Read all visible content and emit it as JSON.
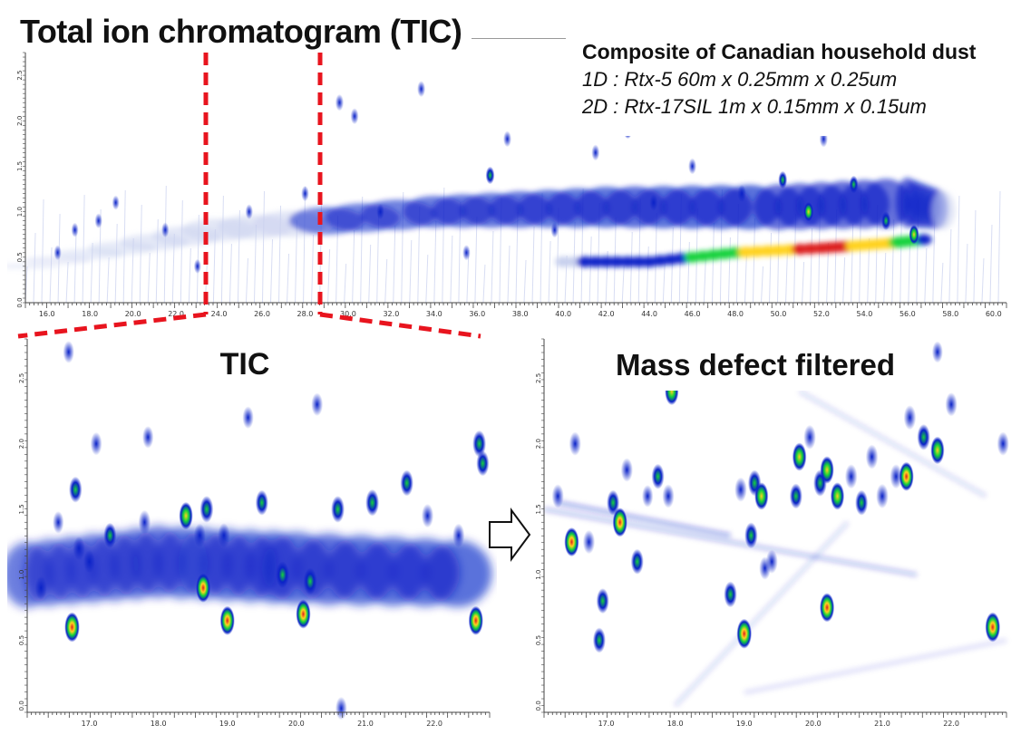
{
  "page": {
    "title": "Total ion chromatogram (TIC)",
    "info_heading": "Composite of Canadian household dust",
    "info_line1": "1D : Rtx-5 60m x 0.25mm x 0.25um",
    "info_line2": "2D : Rtx-17SIL 1m x 0.15mm x 0.15um",
    "tic_label": "TIC",
    "mdf_label": "Mass defect filtered"
  },
  "colors": {
    "low": "#c8d0ee",
    "mid": "#0a22c8",
    "high": "#14d23c",
    "peak": "#ffd21e",
    "max": "#dc1e1e",
    "zoom_lines": "#e8141e"
  },
  "chart_data": [
    {
      "type": "heatmap",
      "name": "overview-tic",
      "x_ticks": [
        "16.0",
        "18.0",
        "20.0",
        "22.0",
        "24.0",
        "26.0",
        "28.0",
        "30.0",
        "32.0",
        "34.0",
        "36.0",
        "38.0",
        "40.0",
        "42.0",
        "44.0",
        "46.0",
        "48.0",
        "50.0",
        "52.0",
        "54.0",
        "56.0",
        "58.0",
        "60.0"
      ],
      "xlim": [
        15,
        60.6
      ],
      "y_ticks": [
        "0.0",
        "0.5",
        "1.0",
        "1.5",
        "2.0",
        "2.5"
      ],
      "ylim": [
        0,
        2.75
      ],
      "zoom_region": [
        16.8,
        22.5
      ],
      "band": [
        {
          "x": 15,
          "y": 0.4,
          "w": 0.05,
          "i": 0.1
        },
        {
          "x": 24,
          "y": 0.8,
          "w": 0.25,
          "i": 0.3
        },
        {
          "x": 34,
          "y": 1.0,
          "w": 0.35,
          "i": 0.45
        },
        {
          "x": 42,
          "y": 1.05,
          "w": 0.45,
          "i": 0.55
        },
        {
          "x": 50,
          "y": 1.05,
          "w": 0.5,
          "i": 0.6
        },
        {
          "x": 56,
          "y": 1.1,
          "w": 0.55,
          "i": 0.6
        },
        {
          "x": 58,
          "y": 1.0,
          "w": 0.4,
          "i": 0.3
        }
      ],
      "ridge": [
        {
          "x": 40,
          "y": 0.45,
          "i": 0.3
        },
        {
          "x": 44,
          "y": 0.45,
          "i": 0.55
        },
        {
          "x": 48,
          "y": 0.55,
          "i": 0.8
        },
        {
          "x": 52,
          "y": 0.6,
          "i": 0.95
        },
        {
          "x": 55,
          "y": 0.65,
          "i": 0.85
        },
        {
          "x": 57,
          "y": 0.7,
          "i": 0.6
        }
      ],
      "peaks": [
        {
          "x": 16.5,
          "y": 0.55,
          "i": 0.45
        },
        {
          "x": 17.3,
          "y": 0.8,
          "i": 0.4
        },
        {
          "x": 18.4,
          "y": 0.9,
          "i": 0.45
        },
        {
          "x": 19.2,
          "y": 1.1,
          "i": 0.4
        },
        {
          "x": 21.5,
          "y": 0.8,
          "i": 0.45
        },
        {
          "x": 23.0,
          "y": 0.4,
          "i": 0.4
        },
        {
          "x": 25.4,
          "y": 1.0,
          "i": 0.45
        },
        {
          "x": 28.0,
          "y": 1.2,
          "i": 0.5
        },
        {
          "x": 29.6,
          "y": 2.2,
          "i": 0.6
        },
        {
          "x": 30.3,
          "y": 2.05,
          "i": 0.55
        },
        {
          "x": 31.5,
          "y": 1.0,
          "i": 0.5
        },
        {
          "x": 33.4,
          "y": 2.35,
          "i": 0.55
        },
        {
          "x": 35.5,
          "y": 0.55,
          "i": 0.5
        },
        {
          "x": 36.6,
          "y": 1.4,
          "i": 0.7
        },
        {
          "x": 37.4,
          "y": 1.8,
          "i": 0.55
        },
        {
          "x": 39.6,
          "y": 0.8,
          "i": 0.5
        },
        {
          "x": 41.5,
          "y": 1.65,
          "i": 0.55
        },
        {
          "x": 43.0,
          "y": 1.9,
          "i": 0.7
        },
        {
          "x": 44.2,
          "y": 1.1,
          "i": 0.6
        },
        {
          "x": 46.0,
          "y": 1.5,
          "i": 0.55
        },
        {
          "x": 48.3,
          "y": 1.2,
          "i": 0.65
        },
        {
          "x": 50.2,
          "y": 1.35,
          "i": 0.7
        },
        {
          "x": 51.4,
          "y": 1.0,
          "i": 0.85
        },
        {
          "x": 52.1,
          "y": 1.8,
          "i": 0.6
        },
        {
          "x": 53.5,
          "y": 1.3,
          "i": 0.7
        },
        {
          "x": 55.0,
          "y": 0.9,
          "i": 0.8
        },
        {
          "x": 56.3,
          "y": 0.75,
          "i": 0.85
        }
      ]
    },
    {
      "type": "heatmap",
      "name": "zoom-tic",
      "x_ticks": [
        "17.0",
        "18.0",
        "19.0",
        "20.0",
        "21.0",
        "22.0"
      ],
      "xlim": [
        16.1,
        22.8
      ],
      "y_ticks": [
        "0.0",
        "0.5",
        "1.0",
        "1.5",
        "2.0",
        "2.5"
      ],
      "ylim": [
        -0.05,
        2.8
      ],
      "band": [
        {
          "x": 16.1,
          "y": 1.0,
          "w": 0.5,
          "i": 0.45
        },
        {
          "x": 18.0,
          "y": 1.1,
          "w": 0.55,
          "i": 0.5
        },
        {
          "x": 20.0,
          "y": 1.05,
          "w": 0.55,
          "i": 0.55
        },
        {
          "x": 22.8,
          "y": 1.0,
          "w": 0.5,
          "i": 0.6
        }
      ],
      "peaks": [
        {
          "x": 16.75,
          "y": 0.6,
          "i": 1.0
        },
        {
          "x": 16.8,
          "y": 1.65,
          "i": 0.75
        },
        {
          "x": 16.85,
          "y": 1.2,
          "i": 0.6
        },
        {
          "x": 17.1,
          "y": 2.0,
          "i": 0.55
        },
        {
          "x": 17.0,
          "y": 1.1,
          "i": 0.55
        },
        {
          "x": 17.3,
          "y": 1.3,
          "i": 0.7
        },
        {
          "x": 16.3,
          "y": 0.9,
          "i": 0.6
        },
        {
          "x": 16.55,
          "y": 1.4,
          "i": 0.5
        },
        {
          "x": 17.8,
          "y": 1.4,
          "i": 0.65
        },
        {
          "x": 18.4,
          "y": 1.45,
          "i": 0.85
        },
        {
          "x": 18.6,
          "y": 1.3,
          "i": 0.6
        },
        {
          "x": 18.7,
          "y": 1.5,
          "i": 0.8
        },
        {
          "x": 18.65,
          "y": 0.9,
          "i": 0.95
        },
        {
          "x": 19.0,
          "y": 0.65,
          "i": 0.95
        },
        {
          "x": 18.95,
          "y": 1.3,
          "i": 0.65
        },
        {
          "x": 19.3,
          "y": 2.2,
          "i": 0.5
        },
        {
          "x": 19.5,
          "y": 1.55,
          "i": 0.7
        },
        {
          "x": 19.8,
          "y": 1.0,
          "i": 0.8
        },
        {
          "x": 20.1,
          "y": 0.7,
          "i": 0.95
        },
        {
          "x": 20.2,
          "y": 0.95,
          "i": 0.8
        },
        {
          "x": 20.3,
          "y": 2.3,
          "i": 0.55
        },
        {
          "x": 20.6,
          "y": 1.5,
          "i": 0.8
        },
        {
          "x": 21.1,
          "y": 1.55,
          "i": 0.8
        },
        {
          "x": 20.65,
          "y": -0.02,
          "i": 0.55
        },
        {
          "x": 21.6,
          "y": 1.7,
          "i": 0.75
        },
        {
          "x": 21.9,
          "y": 1.45,
          "i": 0.6
        },
        {
          "x": 22.35,
          "y": 1.3,
          "i": 0.6
        },
        {
          "x": 22.6,
          "y": 0.65,
          "i": 0.95
        },
        {
          "x": 22.65,
          "y": 2.0,
          "i": 0.8
        },
        {
          "x": 22.7,
          "y": 1.85,
          "i": 0.7
        },
        {
          "x": 16.7,
          "y": 2.7,
          "i": 0.5
        },
        {
          "x": 17.85,
          "y": 2.05,
          "i": 0.5
        }
      ]
    },
    {
      "type": "heatmap",
      "name": "zoom-mass-defect",
      "x_ticks": [
        "17.0",
        "18.0",
        "19.0",
        "20.0",
        "21.0",
        "22.0"
      ],
      "xlim": [
        16.1,
        22.8
      ],
      "y_ticks": [
        "0.0",
        "0.5",
        "1.0",
        "1.5",
        "2.0",
        "2.5"
      ],
      "ylim": [
        -0.05,
        2.8
      ],
      "streaks": [
        {
          "x1": 16.1,
          "y1": 1.5,
          "x2": 21.5,
          "y2": 1.0,
          "i": 0.25
        },
        {
          "x1": 16.3,
          "y1": 1.55,
          "x2": 18.8,
          "y2": 1.3,
          "i": 0.35
        },
        {
          "x1": 18.0,
          "y1": 0.0,
          "x2": 20.5,
          "y2": 1.4,
          "i": 0.15
        },
        {
          "x1": 19.0,
          "y1": 0.1,
          "x2": 22.8,
          "y2": 0.5,
          "i": 0.12
        },
        {
          "x1": 19.8,
          "y1": 2.4,
          "x2": 22.5,
          "y2": 1.6,
          "i": 0.15
        }
      ],
      "peaks": [
        {
          "x": 16.3,
          "y": 1.6,
          "i": 0.6
        },
        {
          "x": 16.5,
          "y": 1.25,
          "i": 0.95
        },
        {
          "x": 16.55,
          "y": 2.0,
          "i": 0.6
        },
        {
          "x": 16.75,
          "y": 1.25,
          "i": 0.6
        },
        {
          "x": 16.95,
          "y": 0.8,
          "i": 0.7
        },
        {
          "x": 16.9,
          "y": 0.5,
          "i": 0.7
        },
        {
          "x": 17.1,
          "y": 1.55,
          "i": 0.7
        },
        {
          "x": 17.2,
          "y": 1.4,
          "i": 0.95
        },
        {
          "x": 17.3,
          "y": 1.8,
          "i": 0.6
        },
        {
          "x": 17.45,
          "y": 1.1,
          "i": 0.7
        },
        {
          "x": 17.6,
          "y": 1.6,
          "i": 0.5
        },
        {
          "x": 17.75,
          "y": 1.75,
          "i": 0.7
        },
        {
          "x": 17.9,
          "y": 1.6,
          "i": 0.6
        },
        {
          "x": 17.95,
          "y": 2.4,
          "i": 0.85
        },
        {
          "x": 18.8,
          "y": 0.85,
          "i": 0.75
        },
        {
          "x": 18.95,
          "y": 1.65,
          "i": 0.65
        },
        {
          "x": 19.1,
          "y": 1.3,
          "i": 0.75
        },
        {
          "x": 19.15,
          "y": 1.7,
          "i": 0.75
        },
        {
          "x": 19.0,
          "y": 0.55,
          "i": 1.0
        },
        {
          "x": 19.25,
          "y": 1.6,
          "i": 0.85
        },
        {
          "x": 19.4,
          "y": 1.1,
          "i": 0.6
        },
        {
          "x": 19.75,
          "y": 1.6,
          "i": 0.7
        },
        {
          "x": 19.8,
          "y": 1.9,
          "i": 0.9
        },
        {
          "x": 19.95,
          "y": 2.05,
          "i": 0.65
        },
        {
          "x": 20.1,
          "y": 1.7,
          "i": 0.8
        },
        {
          "x": 20.2,
          "y": 1.8,
          "i": 0.85
        },
        {
          "x": 20.35,
          "y": 1.6,
          "i": 0.85
        },
        {
          "x": 20.2,
          "y": 0.75,
          "i": 0.95
        },
        {
          "x": 20.55,
          "y": 1.75,
          "i": 0.65
        },
        {
          "x": 20.7,
          "y": 1.55,
          "i": 0.7
        },
        {
          "x": 20.85,
          "y": 1.9,
          "i": 0.65
        },
        {
          "x": 21.0,
          "y": 1.6,
          "i": 0.65
        },
        {
          "x": 21.2,
          "y": 1.75,
          "i": 0.65
        },
        {
          "x": 21.35,
          "y": 1.75,
          "i": 0.95
        },
        {
          "x": 21.4,
          "y": 2.2,
          "i": 0.65
        },
        {
          "x": 21.6,
          "y": 2.05,
          "i": 0.75
        },
        {
          "x": 21.8,
          "y": 1.95,
          "i": 0.85
        },
        {
          "x": 22.0,
          "y": 2.3,
          "i": 0.6
        },
        {
          "x": 22.6,
          "y": 0.6,
          "i": 1.0
        },
        {
          "x": 22.75,
          "y": 2.0,
          "i": 0.6
        },
        {
          "x": 21.8,
          "y": 2.7,
          "i": 0.45
        },
        {
          "x": 19.3,
          "y": 1.05,
          "i": 0.55
        }
      ]
    }
  ]
}
